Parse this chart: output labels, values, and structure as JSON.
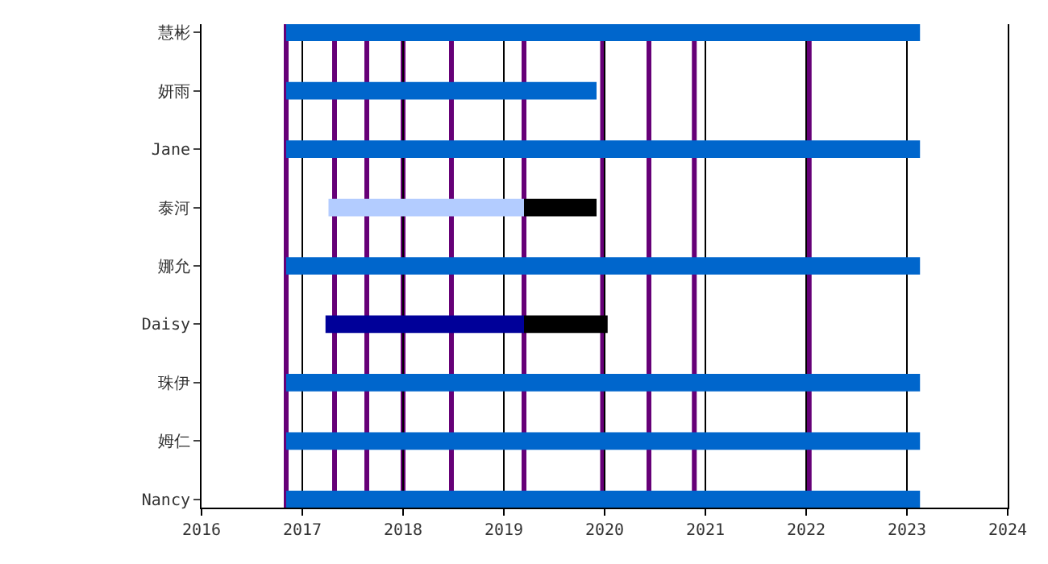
{
  "chart_data": {
    "type": "bar",
    "orientation": "horizontal",
    "categories": [
      "慧彬",
      "妍雨",
      "Jane",
      "泰河",
      "娜允",
      "Daisy",
      "珠伊",
      "姆仁",
      "Nancy"
    ],
    "series": [
      {
        "color": "#0066cc",
        "base": [
          2016.84,
          2016.84,
          2016.84,
          null,
          2016.84,
          null,
          2016.84,
          2016.84,
          2016.84
        ],
        "values": [
          6.29,
          3.08,
          6.29,
          null,
          6.29,
          null,
          6.29,
          6.29,
          6.29
        ]
      },
      {
        "colors": [
          null,
          null,
          null,
          "#b3ccff",
          null,
          "#000099",
          null,
          null,
          null
        ],
        "base": [
          null,
          null,
          null,
          2017.26,
          null,
          2017.23,
          null,
          null,
          null
        ],
        "values": [
          null,
          null,
          null,
          1.94,
          null,
          1.97,
          null,
          null,
          null
        ]
      },
      {
        "color": "#000000",
        "base": [
          null,
          null,
          null,
          2019.2,
          null,
          2019.2,
          null,
          null,
          null
        ],
        "values": [
          null,
          null,
          null,
          0.72,
          null,
          0.83,
          null,
          null,
          null
        ]
      }
    ],
    "xlim": [
      2016,
      2024
    ],
    "xticks": [
      2016,
      2017,
      2018,
      2019,
      2020,
      2021,
      2022,
      2023,
      2024
    ],
    "grid": "x",
    "ref_lines": [
      {
        "axis": "x",
        "value": 2016.84,
        "color": "#660077"
      },
      {
        "axis": "x",
        "value": 2017.32,
        "color": "#660077"
      },
      {
        "axis": "x",
        "value": 2017.64,
        "color": "#660077"
      },
      {
        "axis": "x",
        "value": 2018.0,
        "color": "#660077"
      },
      {
        "axis": "x",
        "value": 2018.48,
        "color": "#660077"
      },
      {
        "axis": "x",
        "value": 2019.2,
        "color": "#660077"
      },
      {
        "axis": "x",
        "value": 2019.98,
        "color": "#660077"
      },
      {
        "axis": "x",
        "value": 2020.44,
        "color": "#660077"
      },
      {
        "axis": "x",
        "value": 2020.89,
        "color": "#660077"
      },
      {
        "axis": "x",
        "value": 2022.03,
        "color": "#660077"
      }
    ]
  }
}
